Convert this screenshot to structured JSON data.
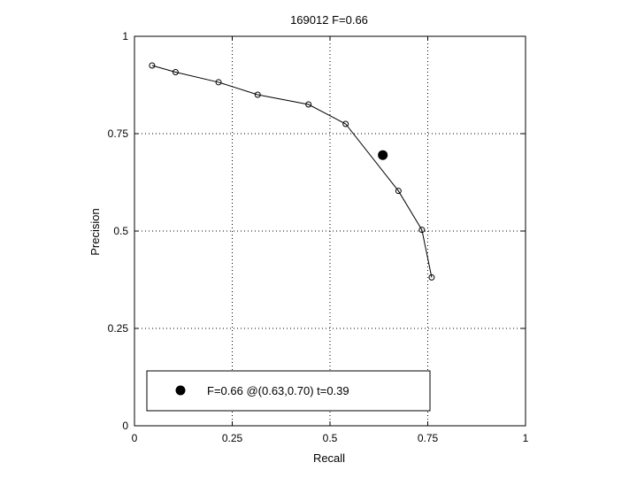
{
  "chart_data": {
    "type": "line",
    "title": "169012 F=0.66",
    "xlabel": "Recall",
    "ylabel": "Precision",
    "xlim": [
      0,
      1
    ],
    "ylim": [
      0,
      1
    ],
    "grid": true,
    "x_ticks": [
      0,
      0.25,
      0.5,
      0.75,
      1
    ],
    "y_ticks": [
      0,
      0.25,
      0.5,
      0.75,
      1
    ],
    "x_tick_labels": [
      "0",
      "0.25",
      "0.5",
      "0.75",
      "1"
    ],
    "y_tick_labels": [
      "0",
      "0.25",
      "0.5",
      "0.75",
      "1"
    ],
    "series": [
      {
        "marker": "open-circle",
        "x": [
          0.045,
          0.105,
          0.215,
          0.315,
          0.445,
          0.54,
          0.675,
          0.735,
          0.76
        ],
        "y": [
          0.925,
          0.908,
          0.882,
          0.85,
          0.825,
          0.775,
          0.603,
          0.503,
          0.381
        ]
      }
    ],
    "highlight_point": {
      "x": 0.635,
      "y": 0.695,
      "marker": "filled-circle"
    },
    "legend": {
      "position": "bottom",
      "entries": [
        {
          "label": "F=0.66 @(0.63,0.70) t=0.39",
          "marker": "filled-circle"
        }
      ]
    }
  }
}
